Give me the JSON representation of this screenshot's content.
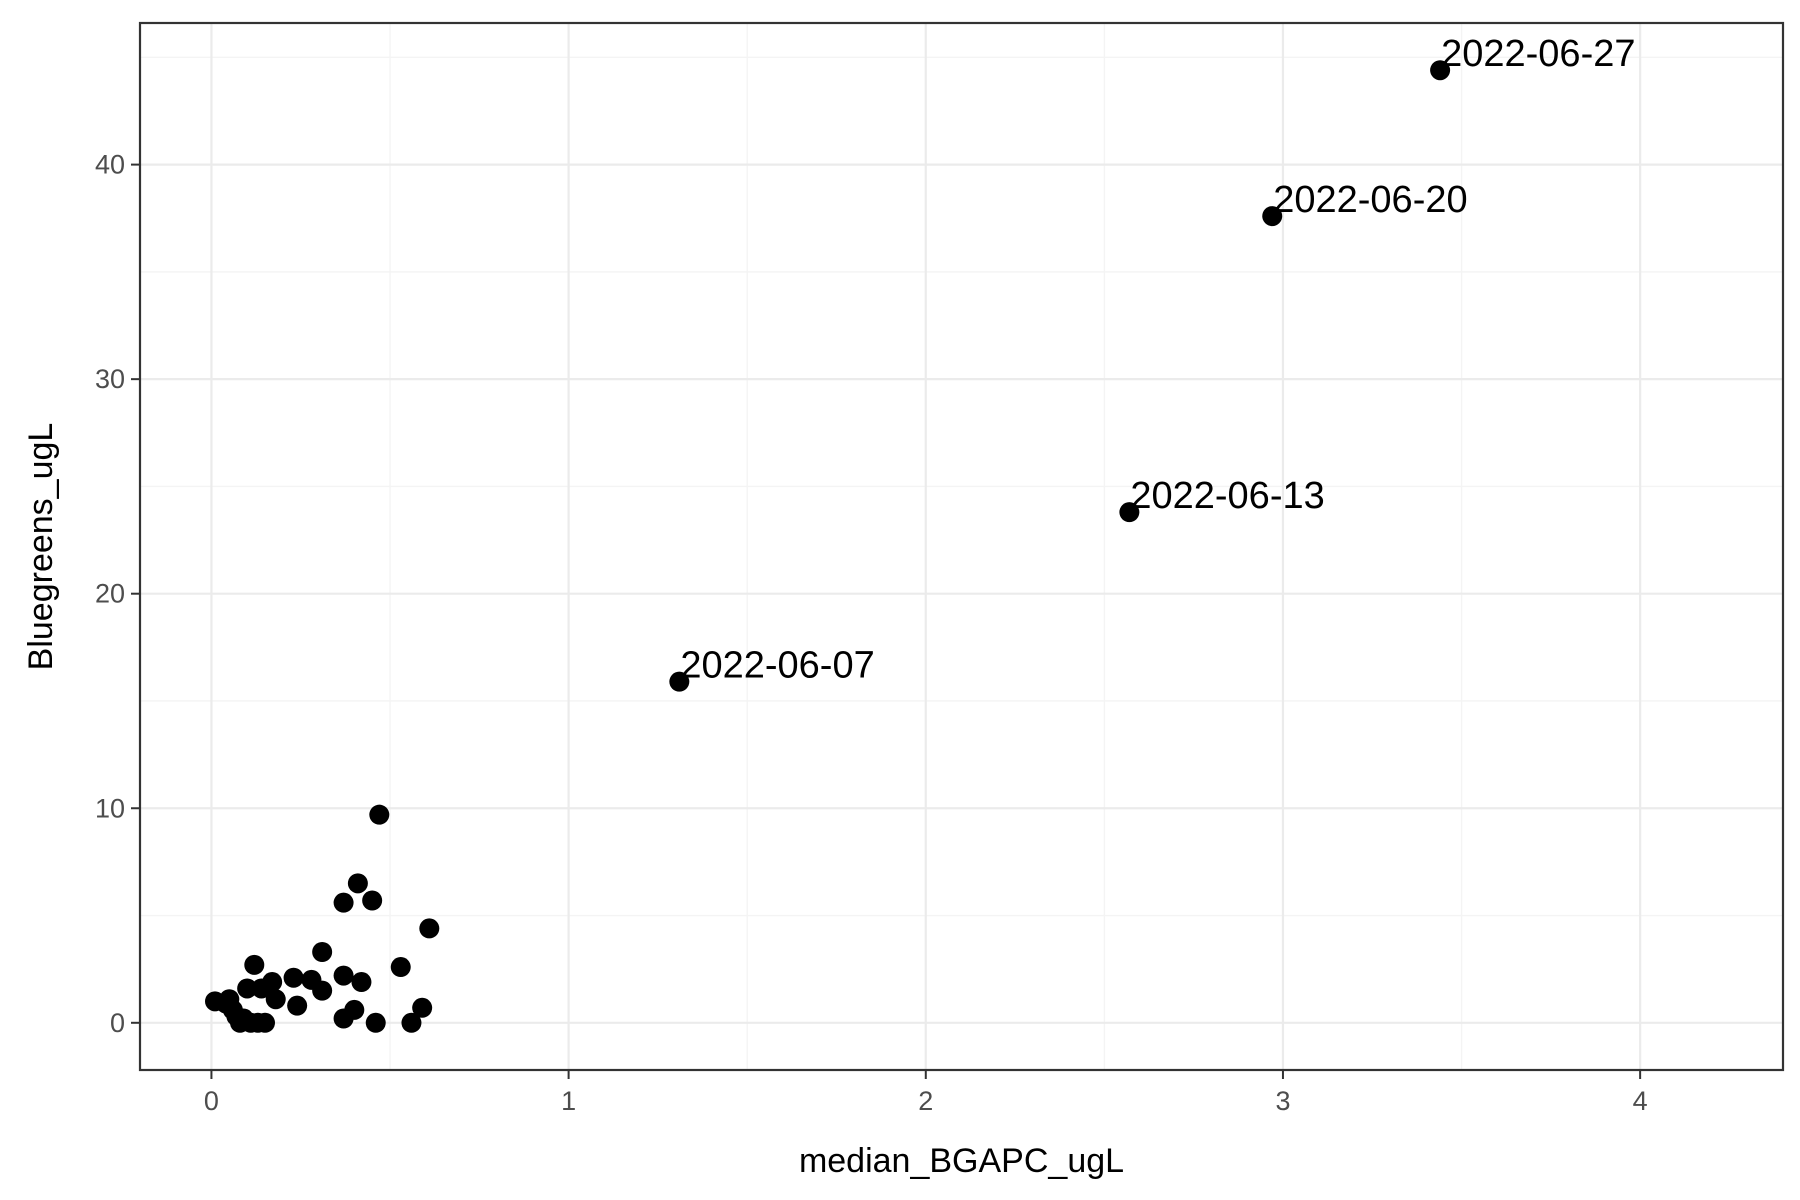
{
  "chart_data": {
    "type": "scatter",
    "title": "",
    "xlabel": "median_BGAPC_ugL",
    "ylabel": "Bluegreens_ugL",
    "xlim": [
      -0.2,
      4.4
    ],
    "ylim": [
      -2.2,
      46.6
    ],
    "x_ticks": [
      0,
      1,
      2,
      3,
      4
    ],
    "y_ticks": [
      0,
      10,
      20,
      30,
      40
    ],
    "x_tick_labels": [
      "0",
      "1",
      "2",
      "3",
      "4"
    ],
    "y_tick_labels": [
      "0",
      "10",
      "20",
      "30",
      "40"
    ],
    "grid": true,
    "legend": "none",
    "point_color": "#000000",
    "points": [
      {
        "x": 0.01,
        "y": 1.0
      },
      {
        "x": 0.04,
        "y": 0.9
      },
      {
        "x": 0.05,
        "y": 1.1
      },
      {
        "x": 0.06,
        "y": 0.6
      },
      {
        "x": 0.07,
        "y": 0.3
      },
      {
        "x": 0.08,
        "y": 0.0
      },
      {
        "x": 0.09,
        "y": 0.2
      },
      {
        "x": 0.1,
        "y": 1.6
      },
      {
        "x": 0.11,
        "y": 0.0
      },
      {
        "x": 0.12,
        "y": 2.7
      },
      {
        "x": 0.13,
        "y": 0.0
      },
      {
        "x": 0.14,
        "y": 1.6
      },
      {
        "x": 0.15,
        "y": 0.0
      },
      {
        "x": 0.17,
        "y": 1.9
      },
      {
        "x": 0.18,
        "y": 1.1
      },
      {
        "x": 0.23,
        "y": 2.1
      },
      {
        "x": 0.24,
        "y": 0.8
      },
      {
        "x": 0.28,
        "y": 2.0
      },
      {
        "x": 0.31,
        "y": 1.5
      },
      {
        "x": 0.31,
        "y": 3.3
      },
      {
        "x": 0.37,
        "y": 0.2
      },
      {
        "x": 0.37,
        "y": 5.6
      },
      {
        "x": 0.37,
        "y": 2.2
      },
      {
        "x": 0.4,
        "y": 0.6
      },
      {
        "x": 0.41,
        "y": 6.5
      },
      {
        "x": 0.42,
        "y": 1.9
      },
      {
        "x": 0.45,
        "y": 5.7
      },
      {
        "x": 0.46,
        "y": 0.0
      },
      {
        "x": 0.47,
        "y": 9.7
      },
      {
        "x": 0.53,
        "y": 2.6
      },
      {
        "x": 0.56,
        "y": 0.0
      },
      {
        "x": 0.59,
        "y": 0.7
      },
      {
        "x": 0.61,
        "y": 4.4
      },
      {
        "x": 1.31,
        "y": 15.9,
        "label": "2022-06-07"
      },
      {
        "x": 2.57,
        "y": 23.8,
        "label": "2022-06-13"
      },
      {
        "x": 2.97,
        "y": 37.6,
        "label": "2022-06-20"
      },
      {
        "x": 3.44,
        "y": 44.4,
        "label": "2022-06-27"
      }
    ]
  }
}
